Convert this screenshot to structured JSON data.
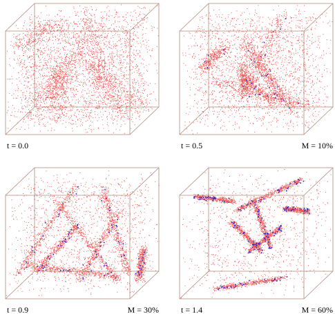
{
  "panels": [
    {
      "time": "t = 0.0"
    },
    {
      "time": "t = 0.5",
      "mass": "M = 10%"
    },
    {
      "time": "t = 0.9",
      "mass": "M = 30%"
    },
    {
      "time": "t = 1.4",
      "mass": "M = 60%"
    }
  ]
}
